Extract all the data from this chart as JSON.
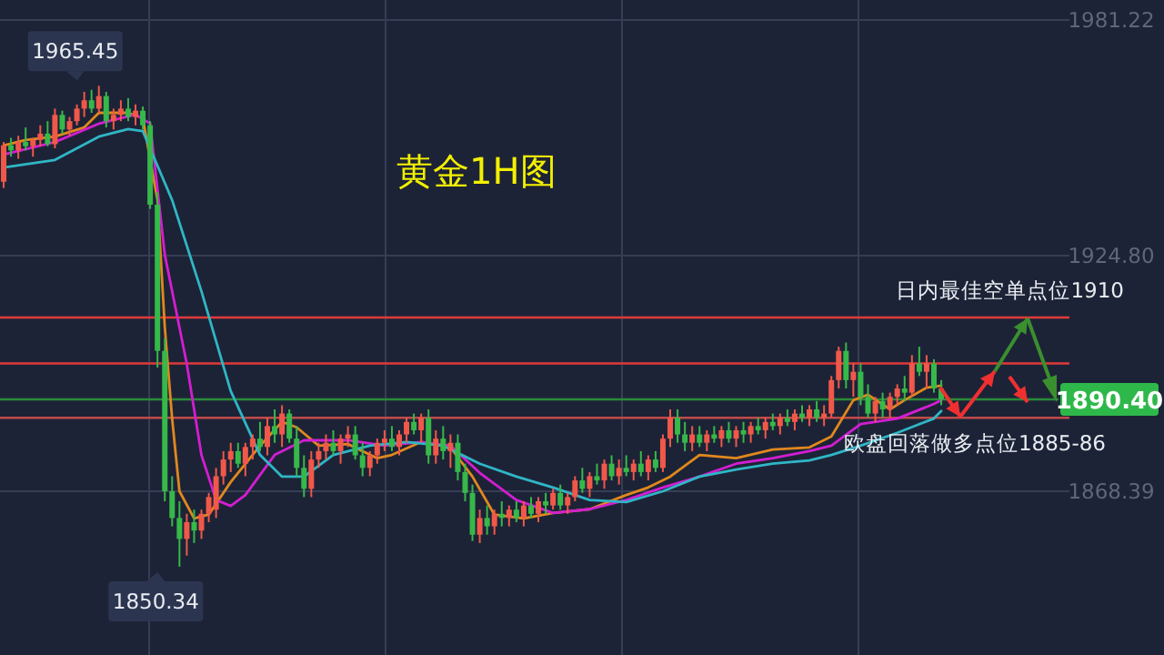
{
  "chart_data": {
    "type": "candlestick",
    "title": "黄金1H图",
    "categories": [
      null,
      null,
      null,
      null,
      null,
      null,
      null,
      null,
      null,
      null,
      null,
      null,
      null,
      null,
      null,
      null,
      null,
      null,
      null,
      null,
      null,
      null,
      null,
      null,
      null,
      null,
      null,
      null,
      null,
      null,
      null,
      null,
      null,
      null,
      null,
      null,
      null,
      null,
      null,
      null,
      null,
      null,
      null,
      null,
      null,
      null,
      null,
      null,
      null,
      null,
      null,
      null,
      null,
      null,
      null,
      null,
      null,
      null,
      null,
      null,
      null,
      null,
      null,
      null,
      null,
      null,
      null,
      null,
      null,
      null,
      null,
      null,
      null,
      null,
      null,
      null,
      null,
      null,
      null,
      null,
      null,
      null,
      null,
      null,
      null,
      null,
      null,
      null,
      null,
      null,
      null,
      null,
      null,
      null,
      null,
      null,
      null,
      null,
      null,
      null,
      null,
      null,
      null,
      null,
      null,
      null,
      null,
      null,
      null,
      null,
      null,
      null,
      null,
      null,
      null,
      null,
      null,
      null,
      null,
      null,
      null,
      null,
      null,
      null,
      null,
      null,
      null,
      null,
      null,
      null,
      null,
      null,
      null,
      null,
      null,
      null,
      null,
      null,
      null,
      null,
      null,
      null,
      null,
      null,
      null,
      null
    ],
    "ohlc": [
      [
        1942.5,
        1952,
        1941,
        1951.2
      ],
      [
        1951.2,
        1953,
        1948.5,
        1950
      ],
      [
        1950,
        1953.5,
        1948,
        1952
      ],
      [
        1952,
        1955.5,
        1950,
        1951
      ],
      [
        1951,
        1953,
        1948.5,
        1952.5
      ],
      [
        1952.5,
        1956,
        1951,
        1954
      ],
      [
        1954,
        1957,
        1951,
        1951.5
      ],
      [
        1951.5,
        1960,
        1950.5,
        1958.5
      ],
      [
        1958.5,
        1959.5,
        1954,
        1955
      ],
      [
        1955,
        1958,
        1953.5,
        1957
      ],
      [
        1957,
        1961,
        1956,
        1960
      ],
      [
        1960,
        1964,
        1958,
        1962
      ],
      [
        1962,
        1964.5,
        1959,
        1960
      ],
      [
        1960,
        1965.45,
        1959,
        1963
      ],
      [
        1963,
        1964,
        1955.5,
        1957
      ],
      [
        1957,
        1960,
        1955,
        1958.5
      ],
      [
        1958.5,
        1962,
        1957,
        1960
      ],
      [
        1960,
        1962.5,
        1957,
        1958
      ],
      [
        1958,
        1961,
        1956,
        1959.5
      ],
      [
        1959.5,
        1960.5,
        1955,
        1956
      ],
      [
        1956,
        1957,
        1936,
        1937
      ],
      [
        1937,
        1940,
        1898,
        1902
      ],
      [
        1902,
        1905,
        1866,
        1868.4
      ],
      [
        1868.4,
        1872,
        1860,
        1862
      ],
      [
        1862,
        1866,
        1850.34,
        1857
      ],
      [
        1857,
        1863,
        1853,
        1861
      ],
      [
        1861,
        1864,
        1856,
        1859
      ],
      [
        1859,
        1864,
        1857,
        1863
      ],
      [
        1863,
        1868,
        1861,
        1867
      ],
      [
        1864,
        1874,
        1862,
        1872
      ],
      [
        1872,
        1878,
        1870,
        1876
      ],
      [
        1876,
        1880,
        1873,
        1878
      ],
      [
        1878,
        1880,
        1874,
        1875
      ],
      [
        1875,
        1880,
        1872,
        1879
      ],
      [
        1879,
        1882,
        1876,
        1881
      ],
      [
        1881,
        1885,
        1878,
        1879
      ],
      [
        1879,
        1886,
        1877,
        1884
      ],
      [
        1884,
        1888,
        1880,
        1882
      ],
      [
        1882,
        1889,
        1879,
        1887
      ],
      [
        1887,
        1888,
        1880,
        1881
      ],
      [
        1881,
        1884,
        1872,
        1874
      ],
      [
        1874,
        1877,
        1867,
        1869
      ],
      [
        1869,
        1878,
        1867,
        1876
      ],
      [
        1876,
        1880,
        1874,
        1878
      ],
      [
        1878,
        1882,
        1876,
        1880
      ],
      [
        1880,
        1883,
        1877,
        1878
      ],
      [
        1878,
        1882,
        1875,
        1881
      ],
      [
        1881,
        1884,
        1879,
        1882
      ],
      [
        1882,
        1884,
        1876,
        1877
      ],
      [
        1877,
        1880,
        1872,
        1874
      ],
      [
        1874,
        1878,
        1872,
        1877
      ],
      [
        1877,
        1881,
        1875,
        1880
      ],
      [
        1880,
        1883,
        1878,
        1881
      ],
      [
        1881,
        1884,
        1878,
        1879
      ],
      [
        1879,
        1883,
        1877,
        1882
      ],
      [
        1882,
        1886,
        1880,
        1885
      ],
      [
        1885,
        1887,
        1882,
        1883
      ],
      [
        1883,
        1887,
        1880,
        1886
      ],
      [
        1886,
        1888,
        1875,
        1877
      ],
      [
        1877,
        1883,
        1875,
        1881
      ],
      [
        1881,
        1884,
        1876,
        1878
      ],
      [
        1878,
        1882,
        1874,
        1880
      ],
      [
        1880,
        1882,
        1871,
        1873
      ],
      [
        1873,
        1875,
        1866,
        1868
      ],
      [
        1868,
        1870,
        1856.5,
        1858
      ],
      [
        1858,
        1864,
        1856,
        1862
      ],
      [
        1862,
        1865,
        1858,
        1860
      ],
      [
        1860,
        1864,
        1858,
        1863
      ],
      [
        1863,
        1866,
        1860,
        1862
      ],
      [
        1862,
        1865,
        1860,
        1864
      ],
      [
        1864,
        1866,
        1861,
        1862
      ],
      [
        1862,
        1866,
        1860,
        1865
      ],
      [
        1865,
        1867,
        1862,
        1863
      ],
      [
        1863,
        1867,
        1861,
        1866
      ],
      [
        1866,
        1868,
        1863,
        1865
      ],
      [
        1865,
        1869,
        1864,
        1868
      ],
      [
        1868,
        1870,
        1864,
        1865
      ],
      [
        1865,
        1868,
        1863,
        1867
      ],
      [
        1867,
        1872,
        1866,
        1871
      ],
      [
        1871,
        1874,
        1868,
        1869
      ],
      [
        1869,
        1873,
        1867,
        1872
      ],
      [
        1872,
        1875,
        1870,
        1871
      ],
      [
        1871,
        1876,
        1869,
        1875
      ],
      [
        1875,
        1877,
        1871,
        1872
      ],
      [
        1872,
        1876,
        1870,
        1874
      ],
      [
        1874,
        1877,
        1872,
        1873
      ],
      [
        1873,
        1876,
        1871,
        1875
      ],
      [
        1875,
        1878,
        1872,
        1873
      ],
      [
        1873,
        1877,
        1871,
        1876
      ],
      [
        1876,
        1878,
        1873,
        1874
      ],
      [
        1874,
        1882,
        1873,
        1881
      ],
      [
        1881,
        1888,
        1879,
        1886
      ],
      [
        1886,
        1888,
        1880,
        1882
      ],
      [
        1882,
        1885,
        1878,
        1880
      ],
      [
        1880,
        1884,
        1878,
        1882
      ],
      [
        1882,
        1884,
        1879,
        1880
      ],
      [
        1880,
        1883,
        1878,
        1882
      ],
      [
        1882,
        1884,
        1880,
        1881
      ],
      [
        1881,
        1884,
        1879,
        1883
      ],
      [
        1883,
        1885,
        1880,
        1881
      ],
      [
        1881,
        1884,
        1879,
        1883
      ],
      [
        1883,
        1885,
        1880,
        1882
      ],
      [
        1882,
        1885,
        1880,
        1884
      ],
      [
        1884,
        1886,
        1882,
        1883
      ],
      [
        1883,
        1886,
        1881,
        1885
      ],
      [
        1885,
        1887,
        1883,
        1884
      ],
      [
        1884,
        1887,
        1882,
        1886
      ],
      [
        1886,
        1888,
        1884,
        1885
      ],
      [
        1885,
        1888,
        1883,
        1887
      ],
      [
        1887,
        1889,
        1885,
        1886
      ],
      [
        1886,
        1889,
        1884,
        1888
      ],
      [
        1888,
        1890,
        1885,
        1886
      ],
      [
        1886,
        1889,
        1884,
        1887
      ],
      [
        1887,
        1896,
        1886,
        1895
      ],
      [
        1895,
        1903,
        1893,
        1902
      ],
      [
        1902,
        1904,
        1893,
        1895
      ],
      [
        1895,
        1899,
        1891,
        1897
      ],
      [
        1897,
        1899,
        1889,
        1891
      ],
      [
        1891,
        1894,
        1886,
        1887
      ],
      [
        1887,
        1891,
        1885,
        1890
      ],
      [
        1890,
        1892,
        1886,
        1888
      ],
      [
        1888,
        1892,
        1886,
        1891
      ],
      [
        1891,
        1894,
        1889,
        1893
      ],
      [
        1893,
        1896,
        1890,
        1892
      ],
      [
        1892,
        1901,
        1891,
        1899
      ],
      [
        1899,
        1903,
        1896,
        1897
      ],
      [
        1897,
        1901,
        1893,
        1899
      ],
      [
        1899,
        1900,
        1892,
        1893
      ],
      [
        1893,
        1895,
        1889,
        1890.4
      ],
      null,
      null,
      null,
      null,
      null,
      null,
      null,
      null,
      null,
      null,
      null,
      null,
      null,
      null,
      null,
      null,
      null
    ],
    "series": [
      {
        "type": "line",
        "color": "#e0881e",
        "values": [
          1951.2,
          null,
          null,
          1952.5,
          null,
          null,
          null,
          1953.3,
          null,
          null,
          null,
          1955.5,
          null,
          1959.0,
          null,
          null,
          null,
          1959.0,
          null,
          1957.7,
          null,
          1938.1,
          1907.6,
          1885.8,
          1868.4,
          null,
          1861.9,
          null,
          1862.8,
          null,
          null,
          1870.6,
          null,
          null,
          null,
          1879.3,
          null,
          null,
          1885.0,
          null,
          1883.7,
          null,
          null,
          1879.3,
          null,
          null,
          null,
          1879.7,
          null,
          null,
          null,
          1876.3,
          null,
          1877.1,
          null,
          null,
          null,
          1880.2,
          null,
          null,
          null,
          1878.9,
          null,
          null,
          1871.9,
          null,
          null,
          1862.8,
          null,
          null,
          null,
          1861.9,
          null,
          null,
          null,
          1863.2,
          null,
          null,
          null,
          null,
          1864.1,
          null,
          null,
          null,
          null,
          1867.5,
          null,
          null,
          1869.3,
          null,
          null,
          1871.9,
          null,
          null,
          null,
          1877.1,
          null,
          null,
          null,
          null,
          1876.3,
          null,
          null,
          null,
          null,
          1878.4,
          null,
          null,
          null,
          null,
          1878.9,
          null,
          null,
          1881.5,
          null,
          null,
          1890.2,
          null,
          1891.5,
          null,
          null,
          1888.0,
          null,
          1890.2,
          null,
          null,
          1893.2,
          null,
          1893.7,
          null,
          null,
          null,
          null,
          null,
          null,
          null,
          null,
          null,
          null,
          null,
          null,
          null,
          null,
          null,
          null,
          null
        ]
      },
      {
        "type": "line",
        "color": "#d21ed2",
        "values": [
          1949.0,
          null,
          null,
          null,
          null,
          null,
          null,
          1952.0,
          null,
          null,
          null,
          null,
          null,
          1956.4,
          null,
          null,
          null,
          null,
          1958.6,
          null,
          1956.4,
          null,
          1925.0,
          null,
          null,
          1898.9,
          null,
          1877.1,
          null,
          1866.3,
          null,
          1864.9,
          null,
          1867.5,
          null,
          null,
          null,
          1877.1,
          null,
          null,
          null,
          1880.6,
          null,
          null,
          null,
          null,
          null,
          1880.6,
          null,
          null,
          null,
          null,
          1879.3,
          null,
          null,
          null,
          null,
          1880.2,
          null,
          null,
          null,
          1879.3,
          null,
          null,
          null,
          1872.8,
          null,
          null,
          null,
          null,
          1866.3,
          null,
          null,
          null,
          null,
          1863.2,
          null,
          null,
          null,
          null,
          1864.1,
          null,
          null,
          null,
          null,
          1866.3,
          null,
          null,
          null,
          null,
          1869.3,
          null,
          null,
          null,
          null,
          1871.9,
          null,
          null,
          null,
          null,
          1875.0,
          null,
          null,
          null,
          null,
          1876.3,
          null,
          null,
          null,
          null,
          1878.0,
          null,
          null,
          1879.3,
          null,
          null,
          null,
          1884.5,
          null,
          null,
          null,
          null,
          1885.8,
          null,
          null,
          null,
          null,
          1889.3,
          1890.2,
          null,
          null,
          null,
          null,
          null,
          null,
          null,
          null,
          null,
          null,
          null,
          null,
          null,
          null,
          null,
          null,
          null
        ]
      },
      {
        "type": "line",
        "color": "#2fb6c6",
        "values": [
          1945.9,
          null,
          null,
          null,
          null,
          null,
          null,
          1947.7,
          null,
          null,
          null,
          null,
          null,
          1953.3,
          null,
          null,
          null,
          1955.1,
          null,
          1954.6,
          null,
          null,
          null,
          1938.1,
          null,
          null,
          null,
          1916.3,
          null,
          null,
          null,
          1892.4,
          null,
          null,
          null,
          1877.1,
          null,
          null,
          1871.9,
          null,
          null,
          1871.9,
          null,
          null,
          null,
          1877.1,
          null,
          null,
          null,
          null,
          1879.3,
          null,
          null,
          null,
          null,
          1880.2,
          null,
          null,
          null,
          null,
          1879.3,
          null,
          null,
          null,
          null,
          1875.0,
          null,
          null,
          null,
          null,
          1871.9,
          null,
          null,
          null,
          null,
          1869.3,
          null,
          null,
          null,
          null,
          1866.3,
          null,
          null,
          null,
          null,
          1865.8,
          null,
          null,
          null,
          null,
          1868.4,
          null,
          null,
          null,
          null,
          1871.9,
          null,
          null,
          null,
          null,
          1873.6,
          null,
          null,
          null,
          null,
          1875.0,
          null,
          null,
          null,
          null,
          1875.8,
          null,
          null,
          1877.1,
          null,
          null,
          null,
          1879.3,
          null,
          null,
          null,
          null,
          1882.4,
          null,
          null,
          null,
          null,
          1885.8,
          1887.6,
          null,
          null,
          null,
          null,
          null,
          null,
          null,
          null,
          null,
          null,
          null,
          null,
          null,
          null,
          null,
          null,
          null
        ]
      }
    ],
    "ylim": [
      1829.2,
      1986.0
    ],
    "yticks": [
      1868.39,
      {
        "value": 1924.8,
        "label": "1924.80"
      },
      1981.22
    ],
    "tick_labels": "y",
    "grid": true,
    "ref_lines": [
      {
        "axis": "y",
        "value": 1910,
        "color": "#e03a3a"
      },
      {
        "axis": "y",
        "value": 1899,
        "color": "#e03a3a"
      },
      {
        "axis": "y",
        "value": 1890.4,
        "label": "1890.40",
        "color": "#2a8a3a"
      },
      {
        "axis": "y",
        "value": 1886,
        "color": "#c04a4a"
      }
    ],
    "annotations": [
      "1965.45",
      "1850.34",
      {
        "text": "日内最佳空单点位1910",
        "y": 1910
      },
      {
        "text": "欧盘回落做多点位1885-86",
        "y": 1886
      }
    ]
  }
}
